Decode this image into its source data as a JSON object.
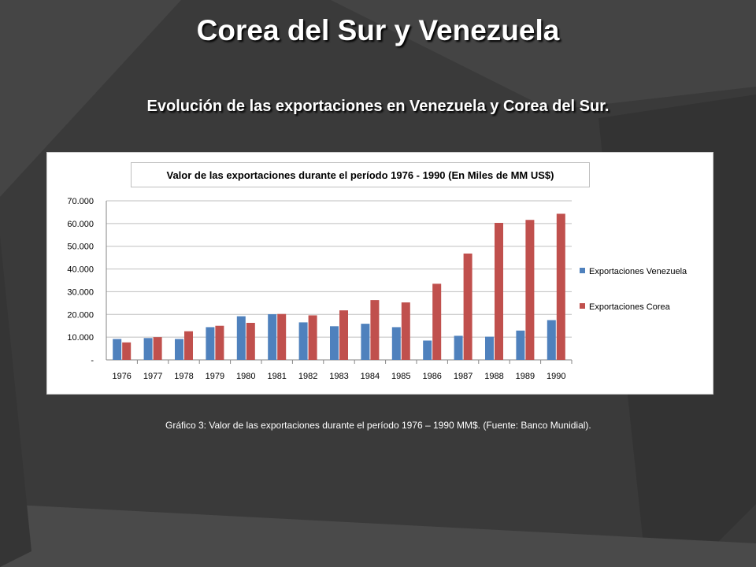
{
  "slide": {
    "title": "Corea del Sur y Venezuela",
    "subtitle": "Evolución de las exportaciones en Venezuela y Corea del Sur.",
    "caption": "Gráfico 3: Valor de las exportaciones durante el período 1976 – 1990 MM$. (Fuente: Banco Munidial)."
  },
  "colors": {
    "background": "#3b3b3b",
    "venezuela": "#4f81bd",
    "corea": "#c0504d"
  },
  "chart_data": {
    "type": "bar",
    "title": "Valor de las exportaciones durante el período 1976 - 1990 (En Miles de MM US$)",
    "categories": [
      "1976",
      "1977",
      "1978",
      "1979",
      "1980",
      "1981",
      "1982",
      "1983",
      "1984",
      "1985",
      "1986",
      "1987",
      "1988",
      "1989",
      "1990"
    ],
    "series": [
      {
        "name": "Exportaciones Venezuela",
        "color": "#4f81bd",
        "values": [
          9200,
          9600,
          9200,
          14400,
          19200,
          20100,
          16500,
          14800,
          15900,
          14400,
          8500,
          10600,
          10200,
          12900,
          17500
        ]
      },
      {
        "name": "Exportaciones Corea",
        "color": "#c0504d",
        "values": [
          7700,
          10000,
          12600,
          15000,
          16300,
          20200,
          19600,
          21800,
          26300,
          25300,
          33500,
          46800,
          60300,
          61600,
          64300
        ]
      }
    ],
    "yticks": [
      "-",
      "10.000",
      "20.000",
      "30.000",
      "40.000",
      "50.000",
      "60.000",
      "70.000"
    ],
    "ylim": [
      0,
      70000
    ],
    "grid": true,
    "legend": "right"
  }
}
